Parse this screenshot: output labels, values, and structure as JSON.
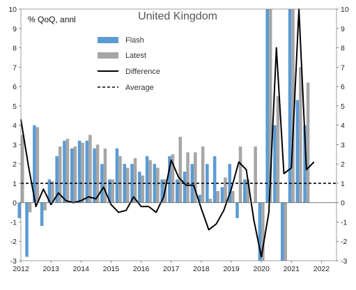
{
  "chart_data": {
    "type": "bar",
    "title": "United Kingdom",
    "ylabel": "% QoQ, annl",
    "ylim": [
      -3,
      10
    ],
    "yticks": [
      -3,
      -2,
      -1,
      0,
      1,
      2,
      3,
      4,
      5,
      6,
      7,
      8,
      9,
      10
    ],
    "xlim": [
      2012,
      2022.5
    ],
    "xticks": [
      "2012",
      "2013",
      "2014",
      "2015",
      "2016",
      "2017",
      "2018",
      "2019",
      "2020",
      "2021",
      "2022"
    ],
    "legend_position": "top-center",
    "average": 1.0,
    "series": [
      {
        "name": "Flash",
        "kind": "bar",
        "color": "#5b9bd5",
        "x": [
          2012.0,
          2012.25,
          2012.5,
          2012.75,
          2013.0,
          2013.25,
          2013.5,
          2013.75,
          2014.0,
          2014.25,
          2014.5,
          2014.75,
          2015.0,
          2015.25,
          2015.5,
          2015.75,
          2016.0,
          2016.25,
          2016.5,
          2016.75,
          2017.0,
          2017.25,
          2017.5,
          2017.75,
          2018.0,
          2018.25,
          2018.5,
          2018.75,
          2019.0,
          2019.25,
          2019.5,
          2019.75,
          2020.0,
          2020.25,
          2020.5,
          2020.75,
          2021.0,
          2021.25,
          2021.5,
          2021.75
        ],
        "values": [
          -0.8,
          -2.8,
          4.0,
          -1.2,
          1.2,
          2.4,
          3.2,
          2.8,
          3.2,
          3.2,
          2.8,
          2.0,
          1.2,
          2.8,
          2.0,
          2.0,
          1.6,
          2.4,
          2.0,
          1.2,
          2.4,
          1.2,
          1.6,
          2.0,
          0.4,
          2.0,
          2.4,
          0.8,
          2.0,
          -0.8,
          1.2,
          0.0,
          -3.0,
          10.0,
          4.0,
          -3.0,
          10.0,
          5.3,
          4.0,
          0.0
        ]
      },
      {
        "name": "Latest",
        "kind": "bar",
        "color": "#a6a6a6",
        "x": [
          2012.0,
          2012.25,
          2012.5,
          2012.75,
          2013.0,
          2013.25,
          2013.5,
          2013.75,
          2014.0,
          2014.25,
          2014.5,
          2014.75,
          2015.0,
          2015.25,
          2015.5,
          2015.75,
          2016.0,
          2016.25,
          2016.5,
          2016.75,
          2017.0,
          2017.25,
          2017.5,
          2017.75,
          2018.0,
          2018.25,
          2018.5,
          2018.75,
          2019.0,
          2019.25,
          2019.5,
          2019.75,
          2020.0,
          2020.25,
          2020.5,
          2020.75,
          2021.0,
          2021.25,
          2021.5,
          2021.75
        ],
        "values": [
          3.5,
          -0.5,
          3.9,
          -0.4,
          1.1,
          2.9,
          3.3,
          2.9,
          3.1,
          3.5,
          3.0,
          2.8,
          1.2,
          2.4,
          1.8,
          2.3,
          1.4,
          2.2,
          1.8,
          1.2,
          2.5,
          3.4,
          2.6,
          2.6,
          2.9,
          0.2,
          0.6,
          1.3,
          0.6,
          2.9,
          1.2,
          2.9,
          -3.0,
          10.0,
          5.5,
          -3.0,
          10.0,
          7.0,
          6.2,
          0.0
        ]
      },
      {
        "name": "Difference",
        "kind": "line",
        "color": "#000000",
        "dash": "none",
        "x": [
          2012.0,
          2012.25,
          2012.5,
          2012.75,
          2013.0,
          2013.25,
          2013.5,
          2013.75,
          2014.0,
          2014.25,
          2014.5,
          2014.75,
          2015.0,
          2015.25,
          2015.5,
          2015.75,
          2016.0,
          2016.25,
          2016.5,
          2016.75,
          2017.0,
          2017.25,
          2017.5,
          2017.75,
          2018.0,
          2018.25,
          2018.5,
          2018.75,
          2019.0,
          2019.25,
          2019.5,
          2019.75,
          2020.0,
          2020.25,
          2020.5,
          2020.75,
          2021.0,
          2021.25,
          2021.5,
          2021.75
        ],
        "values": [
          4.3,
          1.9,
          -0.2,
          0.7,
          -0.1,
          0.5,
          0.1,
          0.0,
          0.1,
          0.3,
          0.2,
          0.8,
          -0.1,
          -0.5,
          -0.4,
          0.3,
          -0.2,
          -0.2,
          -0.5,
          0.3,
          2.2,
          1.3,
          0.9,
          0.9,
          -0.3,
          -1.4,
          -1.1,
          -0.4,
          0.7,
          2.1,
          1.7,
          -0.9,
          -2.8,
          -0.5,
          8.0,
          1.5,
          1.8,
          11.0,
          1.7,
          2.1
        ]
      },
      {
        "name": "Average",
        "kind": "line",
        "color": "#000000",
        "dash": "4,3",
        "x": [
          2012.0,
          2022.0
        ],
        "values": [
          1.0,
          1.0
        ]
      }
    ]
  }
}
